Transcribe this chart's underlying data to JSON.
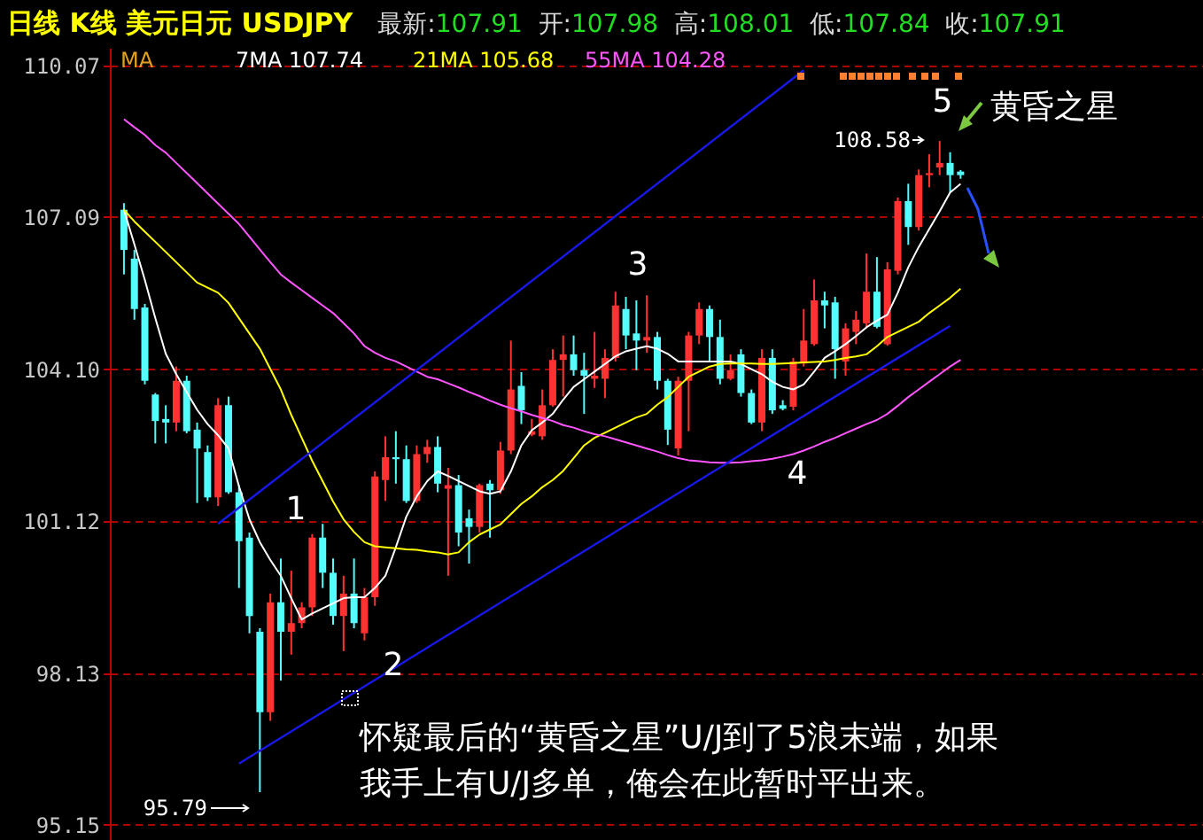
{
  "chart_data": {
    "type": "candlestick",
    "title": "日线 K线 美元日元 USDJPY",
    "subtitle": "最新:107.91  开:107.98  高:108.01  低:107.84  收:107.91",
    "legend_title": "MA",
    "categories": [
      null,
      null,
      null,
      null,
      null,
      null,
      null,
      null,
      null,
      null,
      null,
      null,
      null,
      null,
      null,
      null,
      null,
      null,
      null,
      null,
      null,
      null,
      null,
      null,
      null,
      null,
      null,
      null,
      null,
      null,
      null,
      null,
      null,
      null,
      null,
      null,
      null,
      null,
      null,
      null,
      null,
      null,
      null,
      null,
      null,
      null,
      null,
      null,
      null,
      null,
      null,
      null,
      null,
      null,
      null,
      null,
      null,
      null,
      null,
      null,
      null,
      null,
      null,
      null,
      null,
      null,
      null,
      null,
      null,
      null,
      null,
      null,
      null,
      null,
      null,
      null,
      null,
      null,
      null,
      null,
      null
    ],
    "ohlc": [
      [
        107.23,
        107.36,
        105.96,
        106.44
      ],
      [
        106.27,
        106.44,
        105.07,
        105.28
      ],
      [
        105.31,
        105.38,
        103.8,
        103.87
      ],
      [
        103.6,
        103.63,
        102.64,
        103.08
      ],
      [
        103.12,
        103.39,
        102.64,
        103.05
      ],
      [
        103.05,
        104.15,
        102.88,
        103.87
      ],
      [
        103.87,
        103.97,
        102.84,
        102.88
      ],
      [
        102.91,
        103.05,
        101.47,
        102.54
      ],
      [
        102.47,
        102.6,
        101.51,
        101.58
      ],
      [
        101.58,
        103.53,
        101.41,
        103.39
      ],
      [
        103.39,
        103.56,
        101.65,
        101.68
      ],
      [
        101.68,
        101.82,
        99.8,
        100.72
      ],
      [
        100.79,
        100.89,
        98.91,
        99.25
      ],
      [
        98.94,
        99.01,
        95.79,
        97.36
      ],
      [
        97.36,
        99.69,
        97.19,
        99.52
      ],
      [
        99.52,
        100.38,
        97.98,
        98.94
      ],
      [
        98.94,
        100.14,
        98.49,
        99.11
      ],
      [
        99.11,
        99.52,
        99.01,
        99.42
      ],
      [
        99.42,
        100.86,
        99.25,
        100.79
      ],
      [
        100.79,
        101.06,
        99.8,
        100.1
      ],
      [
        100.1,
        100.38,
        99.08,
        99.25
      ],
      [
        99.25,
        100.04,
        98.56,
        99.69
      ],
      [
        99.69,
        100.38,
        99.01,
        99.11
      ],
      [
        98.91,
        99.8,
        98.77,
        99.62
      ],
      [
        99.62,
        102.09,
        99.45,
        101.99
      ],
      [
        101.92,
        102.78,
        101.51,
        102.37
      ],
      [
        102.37,
        102.88,
        101.85,
        102.33
      ],
      [
        102.33,
        102.6,
        101.47,
        101.51
      ],
      [
        101.51,
        102.6,
        101.47,
        102.43
      ],
      [
        102.43,
        102.71,
        102.26,
        102.57
      ],
      [
        102.57,
        102.78,
        101.68,
        101.85
      ],
      [
        101.75,
        102.16,
        100.04,
        101.82
      ],
      [
        101.82,
        102.02,
        100.62,
        100.89
      ],
      [
        101.17,
        101.34,
        100.28,
        101.0
      ],
      [
        101.0,
        101.85,
        100.89,
        101.82
      ],
      [
        101.85,
        101.92,
        100.79,
        101.72
      ],
      [
        101.72,
        102.67,
        101.65,
        102.5
      ],
      [
        102.5,
        104.66,
        102.43,
        103.7
      ],
      [
        103.77,
        104.04,
        103.02,
        103.29
      ],
      [
        102.81,
        103.12,
        102.78,
        102.88
      ],
      [
        102.78,
        103.7,
        102.71,
        103.39
      ],
      [
        103.39,
        104.49,
        103.36,
        104.28
      ],
      [
        104.28,
        104.76,
        103.56,
        104.39
      ],
      [
        104.39,
        104.76,
        103.97,
        104.08
      ],
      [
        104.08,
        104.42,
        103.22,
        103.97
      ],
      [
        103.91,
        104.83,
        103.73,
        103.97
      ],
      [
        103.91,
        104.49,
        103.53,
        104.32
      ],
      [
        104.32,
        105.62,
        104.25,
        105.35
      ],
      [
        105.28,
        105.52,
        104.49,
        104.76
      ],
      [
        104.8,
        105.45,
        104.08,
        104.66
      ],
      [
        104.66,
        105.55,
        104.42,
        104.73
      ],
      [
        104.73,
        104.83,
        103.7,
        103.87
      ],
      [
        103.87,
        103.91,
        102.61,
        102.91
      ],
      [
        102.54,
        103.95,
        102.4,
        103.87
      ],
      [
        103.87,
        104.83,
        102.88,
        104.76
      ],
      [
        104.76,
        105.41,
        104.59,
        105.28
      ],
      [
        105.28,
        105.35,
        104.25,
        104.73
      ],
      [
        104.73,
        105.07,
        103.8,
        103.91
      ],
      [
        103.91,
        104.39,
        103.88,
        104.08
      ],
      [
        104.39,
        104.49,
        103.56,
        103.63
      ],
      [
        103.63,
        103.7,
        103.02,
        103.05
      ],
      [
        103.05,
        104.49,
        102.88,
        104.32
      ],
      [
        104.32,
        104.49,
        103.22,
        103.29
      ],
      [
        103.39,
        103.49,
        103.29,
        103.32
      ],
      [
        103.36,
        104.32,
        103.29,
        104.25
      ],
      [
        104.21,
        105.28,
        104.15,
        104.66
      ],
      [
        104.59,
        105.86,
        104.56,
        105.45
      ],
      [
        105.45,
        105.62,
        104.9,
        105.35
      ],
      [
        105.41,
        105.52,
        103.91,
        104.49
      ],
      [
        104.25,
        105.0,
        103.97,
        104.9
      ],
      [
        104.83,
        105.24,
        104.59,
        105.07
      ],
      [
        105.0,
        106.37,
        104.9,
        105.62
      ],
      [
        105.62,
        106.3,
        104.9,
        104.93
      ],
      [
        104.59,
        106.2,
        104.56,
        106.06
      ],
      [
        106.03,
        107.47,
        105.96,
        107.4
      ],
      [
        107.4,
        107.74,
        106.54,
        106.89
      ],
      [
        106.89,
        108.02,
        106.82,
        107.91
      ],
      [
        107.91,
        108.32,
        107.67,
        107.95
      ],
      [
        108.06,
        108.58,
        107.91,
        108.15
      ],
      [
        108.15,
        108.36,
        107.57,
        107.91
      ],
      [
        107.98,
        108.01,
        107.84,
        107.91
      ]
    ],
    "series": [
      {
        "name": "7MA 107.74",
        "type": "line",
        "color": "#ffffff",
        "values": [
          107.23,
          106.55,
          105.85,
          105.1,
          104.4,
          104.0,
          103.65,
          103.3,
          103.02,
          102.8,
          102.54,
          101.8,
          101.15,
          100.7,
          100.35,
          100.04,
          99.6,
          99.18,
          99.3,
          99.4,
          99.5,
          99.6,
          99.62,
          99.62,
          99.8,
          100.04,
          100.6,
          101.2,
          101.6,
          101.9,
          102.09,
          102.0,
          101.9,
          101.8,
          101.7,
          101.65,
          101.7,
          102.09,
          102.6,
          102.9,
          103.05,
          103.22,
          103.5,
          103.75,
          103.9,
          104.05,
          104.2,
          104.35,
          104.45,
          104.5,
          104.55,
          104.5,
          104.4,
          104.25,
          104.25,
          104.25,
          104.25,
          104.25,
          104.25,
          104.2,
          104.1,
          104.0,
          103.85,
          103.75,
          103.7,
          103.8,
          104.05,
          104.32,
          104.45,
          104.59,
          104.75,
          104.92,
          105.05,
          105.17,
          105.6,
          106.1,
          106.5,
          106.85,
          107.2,
          107.57,
          107.74
        ]
      },
      {
        "name": "21MA 105.68",
        "type": "line",
        "color": "#ffff00",
        "values": [
          107.23,
          107.0,
          106.8,
          106.6,
          106.4,
          106.2,
          106.0,
          105.8,
          105.7,
          105.6,
          105.4,
          105.1,
          104.8,
          104.5,
          104.1,
          103.7,
          103.2,
          102.75,
          102.3,
          101.9,
          101.5,
          101.15,
          100.9,
          100.7,
          100.62,
          100.6,
          100.58,
          100.56,
          100.55,
          100.52,
          100.5,
          100.46,
          100.5,
          100.7,
          100.85,
          100.95,
          101.05,
          101.25,
          101.45,
          101.6,
          101.78,
          101.92,
          102.1,
          102.35,
          102.6,
          102.75,
          102.85,
          102.95,
          103.05,
          103.15,
          103.22,
          103.4,
          103.55,
          103.75,
          103.95,
          104.05,
          104.15,
          104.2,
          104.21,
          104.21,
          104.21,
          104.2,
          104.2,
          104.21,
          104.22,
          104.23,
          104.24,
          104.25,
          104.28,
          104.32,
          104.35,
          104.39,
          104.55,
          104.73,
          104.83,
          104.93,
          105.03,
          105.2,
          105.35,
          105.5,
          105.68
        ]
      },
      {
        "name": "55MA 104.28",
        "type": "line",
        "color": "#ff55ff",
        "values": [
          109.01,
          108.85,
          108.7,
          108.5,
          108.35,
          108.15,
          107.95,
          107.75,
          107.55,
          107.35,
          107.15,
          106.95,
          106.7,
          106.45,
          106.2,
          105.96,
          105.8,
          105.65,
          105.5,
          105.35,
          105.2,
          105.0,
          104.8,
          104.55,
          104.42,
          104.32,
          104.25,
          104.15,
          104.05,
          103.95,
          103.9,
          103.82,
          103.74,
          103.65,
          103.57,
          103.48,
          103.4,
          103.33,
          103.27,
          103.2,
          103.14,
          103.08,
          103.0,
          102.95,
          102.88,
          102.82,
          102.78,
          102.72,
          102.66,
          102.6,
          102.54,
          102.48,
          102.41,
          102.35,
          102.31,
          102.29,
          102.27,
          102.26,
          102.26,
          102.27,
          102.29,
          102.31,
          102.34,
          102.38,
          102.43,
          102.5,
          102.58,
          102.67,
          102.75,
          102.84,
          102.93,
          103.02,
          103.1,
          103.22,
          103.38,
          103.55,
          103.7,
          103.85,
          104.0,
          104.15,
          104.28
        ]
      },
      {
        "type": "line",
        "color": "#1818e8",
        "values": [
          null,
          null,
          null,
          null,
          null,
          null,
          null,
          null,
          null,
          101.06,
          null,
          null,
          null,
          null,
          null,
          null,
          null,
          null,
          null,
          null,
          null,
          null,
          null,
          null,
          null,
          null,
          null,
          null,
          null,
          null,
          null,
          null,
          null,
          null,
          null,
          null,
          null,
          null,
          null,
          null,
          null,
          null,
          null,
          null,
          null,
          null,
          null,
          null,
          null,
          null,
          null,
          null,
          null,
          null,
          null,
          null,
          null,
          null,
          null,
          null,
          null,
          null,
          null,
          null,
          null,
          109.97,
          null,
          null,
          null,
          null,
          null,
          null,
          null,
          null,
          null,
          null,
          null,
          null,
          null,
          null,
          null
        ]
      },
      {
        "type": "line",
        "color": "#1818e8",
        "values": [
          null,
          null,
          null,
          null,
          null,
          null,
          null,
          null,
          null,
          null,
          null,
          96.35,
          null,
          null,
          null,
          null,
          null,
          null,
          null,
          null,
          null,
          null,
          null,
          null,
          null,
          null,
          null,
          null,
          null,
          null,
          null,
          null,
          null,
          null,
          null,
          null,
          null,
          null,
          null,
          null,
          null,
          null,
          null,
          null,
          null,
          null,
          null,
          null,
          null,
          null,
          null,
          null,
          null,
          null,
          null,
          null,
          null,
          null,
          null,
          null,
          null,
          null,
          null,
          null,
          null,
          null,
          null,
          null,
          null,
          null,
          null,
          null,
          null,
          null,
          null,
          null,
          null,
          null,
          null,
          104.95,
          null
        ]
      }
    ],
    "ylim": [
      94.85,
      110.41
    ],
    "yticks": [
      95.15,
      98.13,
      101.12,
      {
        "value": 104.1,
        "label": "104.10"
      },
      107.09,
      110.07
    ],
    "annotations": [
      "1",
      "2",
      "3",
      "4",
      "5",
      "黄昏之星",
      "108.58",
      "95.79",
      "怀疑最后的“黄昏之星”U/J到了5浪末端，如果我手上有U/J多单，俺会在此暂时平出来。"
    ],
    "grid": "y",
    "tick_labels": "y"
  }
}
